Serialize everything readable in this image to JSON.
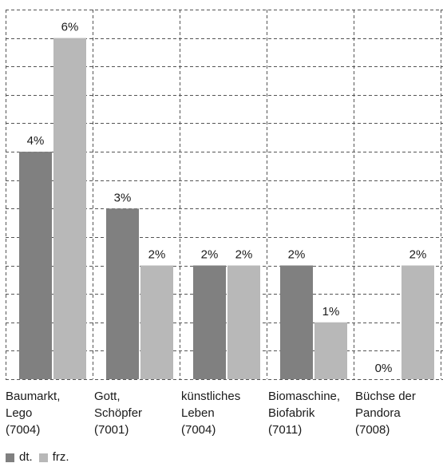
{
  "chart_data": {
    "type": "bar",
    "categories": [
      {
        "lines": [
          "Baumarkt,",
          "Lego",
          "(7004)"
        ]
      },
      {
        "lines": [
          "Gott,",
          "Schöpfer",
          "(7001)"
        ]
      },
      {
        "lines": [
          "künstliches",
          "Leben",
          "(7004)"
        ]
      },
      {
        "lines": [
          "Biomaschine,",
          "Biofabrik",
          "(7011)"
        ]
      },
      {
        "lines": [
          "Büchse der",
          "Pandora",
          "(7008)"
        ]
      }
    ],
    "series": [
      {
        "name": "dt.",
        "color": "#808080",
        "values": [
          4,
          3,
          2,
          2,
          0
        ],
        "labels": [
          "4%",
          "3%",
          "2%",
          "2%",
          "0%"
        ]
      },
      {
        "name": "frz.",
        "color": "#b8b8b8",
        "values": [
          6,
          2,
          2,
          1,
          2
        ],
        "labels": [
          "6%",
          "2%",
          "2%",
          "1%",
          "2%"
        ]
      }
    ],
    "ylim": [
      0,
      6.5
    ],
    "grid": true,
    "legend_position": "bottom-left"
  }
}
